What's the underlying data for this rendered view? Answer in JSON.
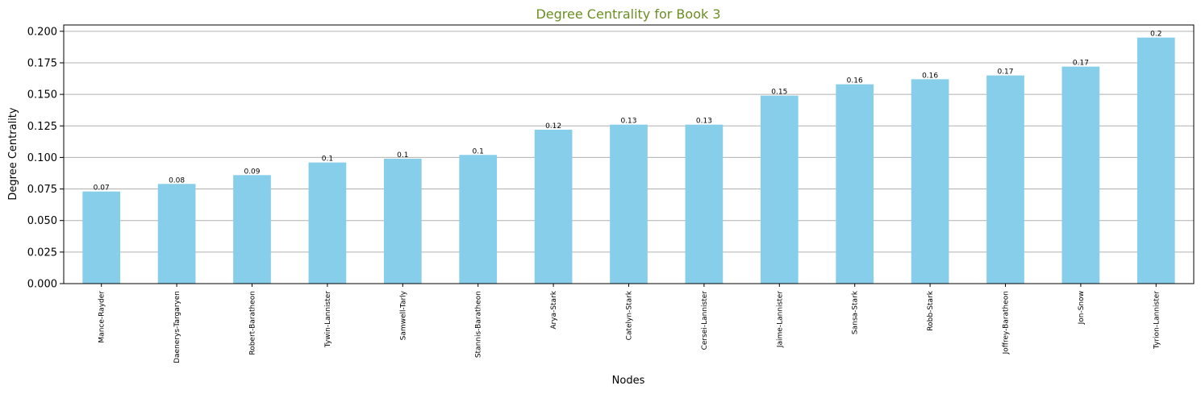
{
  "chart_data": {
    "type": "bar",
    "title": "Degree Centrality for Book 3",
    "xlabel": "Nodes",
    "ylabel": "Degree Centrality",
    "ylim": [
      0,
      0.205
    ],
    "yticks": [
      "0.000",
      "0.025",
      "0.050",
      "0.075",
      "0.100",
      "0.125",
      "0.150",
      "0.175",
      "0.200"
    ],
    "grid": "y",
    "categories": [
      "Mance-Rayder",
      "Daenerys-Targaryen",
      "Robert-Baratheon",
      "Tywin-Lannister",
      "Samwell-Tarly",
      "Stannis-Baratheon",
      "Arya-Stark",
      "Catelyn-Stark",
      "Cersei-Lannister",
      "Jaime-Lannister",
      "Sansa-Stark",
      "Robb-Stark",
      "Joffrey-Baratheon",
      "Jon-Snow",
      "Tyrion-Lannister"
    ],
    "values": [
      0.073,
      0.079,
      0.086,
      0.096,
      0.099,
      0.102,
      0.122,
      0.126,
      0.126,
      0.149,
      0.158,
      0.162,
      0.165,
      0.172,
      0.195
    ],
    "data_labels": [
      "0.07",
      "0.08",
      "0.09",
      "0.1",
      "0.1",
      "0.1",
      "0.12",
      "0.13",
      "0.13",
      "0.15",
      "0.16",
      "0.16",
      "0.17",
      "0.17",
      "0.2"
    ],
    "colors": {
      "bar": "#87ceeb",
      "title": "#6b8e23",
      "grid": "#b0b0b0"
    }
  }
}
